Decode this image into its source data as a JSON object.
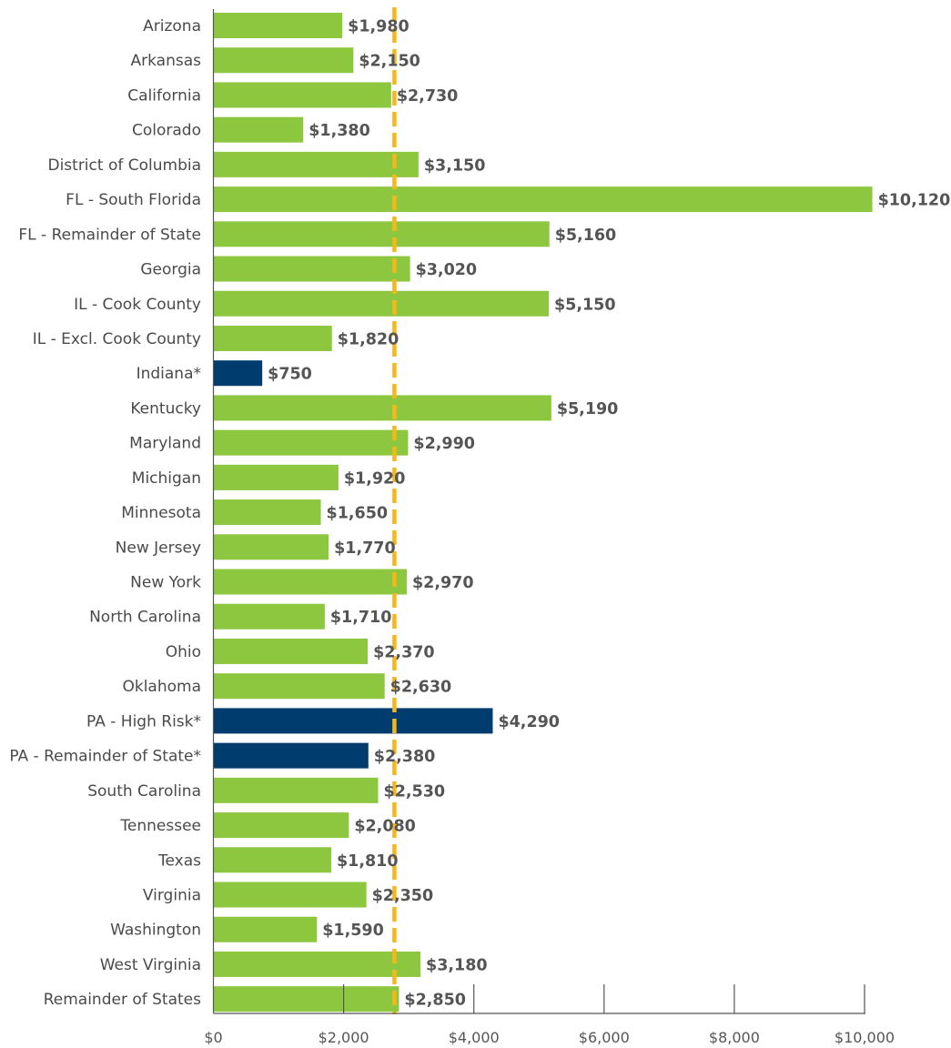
{
  "chart_data": {
    "type": "bar",
    "orientation": "horizontal",
    "title": "",
    "xlabel": "",
    "ylabel": "",
    "xlim": [
      0,
      10000
    ],
    "x_ticks": [
      0,
      2000,
      4000,
      6000,
      8000,
      10000
    ],
    "x_tick_labels": [
      "$0",
      "$2,000",
      "$4,000",
      "$6,000",
      "$8,000",
      "$10,000"
    ],
    "grid": false,
    "legend": "none",
    "categories": [
      "Arizona",
      "Arkansas",
      "California",
      "Colorado",
      "District of Columbia",
      "FL - South Florida",
      "FL - Remainder of State",
      "Georgia",
      "IL - Cook County",
      "IL - Excl. Cook County",
      "Indiana*",
      "Kentucky",
      "Maryland",
      "Michigan",
      "Minnesota",
      "New Jersey",
      "New York",
      "North Carolina",
      "Ohio",
      "Oklahoma",
      "PA - High Risk*",
      "PA - Remainder of State*",
      "South Carolina",
      "Tennessee",
      "Texas",
      "Virginia",
      "Washington",
      "West Virginia",
      "Remainder of States"
    ],
    "values": [
      1980,
      2150,
      2730,
      1380,
      3150,
      10120,
      5160,
      3020,
      5150,
      1820,
      750,
      5190,
      2990,
      1920,
      1650,
      1770,
      2970,
      1710,
      2370,
      2630,
      4290,
      2380,
      2530,
      2080,
      1810,
      2350,
      1590,
      3180,
      2850
    ],
    "value_labels": [
      "$1,980",
      "$2,150",
      "$2,730",
      "$1,380",
      "$3,150",
      "$10,120",
      "$5,160",
      "$3,020",
      "$5,150",
      "$1,820",
      "$750",
      "$5,190",
      "$2,990",
      "$1,920",
      "$1,650",
      "$1,770",
      "$2,970",
      "$1,710",
      "$2,370",
      "$2,630",
      "$4,290",
      "$2,380",
      "$2,530",
      "$2,080",
      "$1,810",
      "$2,350",
      "$1,590",
      "$3,180",
      "$2,850"
    ],
    "highlighted": [
      false,
      false,
      false,
      false,
      false,
      false,
      false,
      false,
      false,
      false,
      true,
      false,
      false,
      false,
      false,
      false,
      false,
      false,
      false,
      false,
      true,
      true,
      false,
      false,
      false,
      false,
      false,
      false,
      false
    ],
    "reference_line": {
      "value": 2780,
      "style": "dashed"
    },
    "colors": {
      "bar": "#8dc63f",
      "bar_highlight": "#003d6e",
      "reference_line": "#f5b81c",
      "axis": "#555555",
      "category_text": "#4a4a4a",
      "value_text": "#555555"
    }
  }
}
